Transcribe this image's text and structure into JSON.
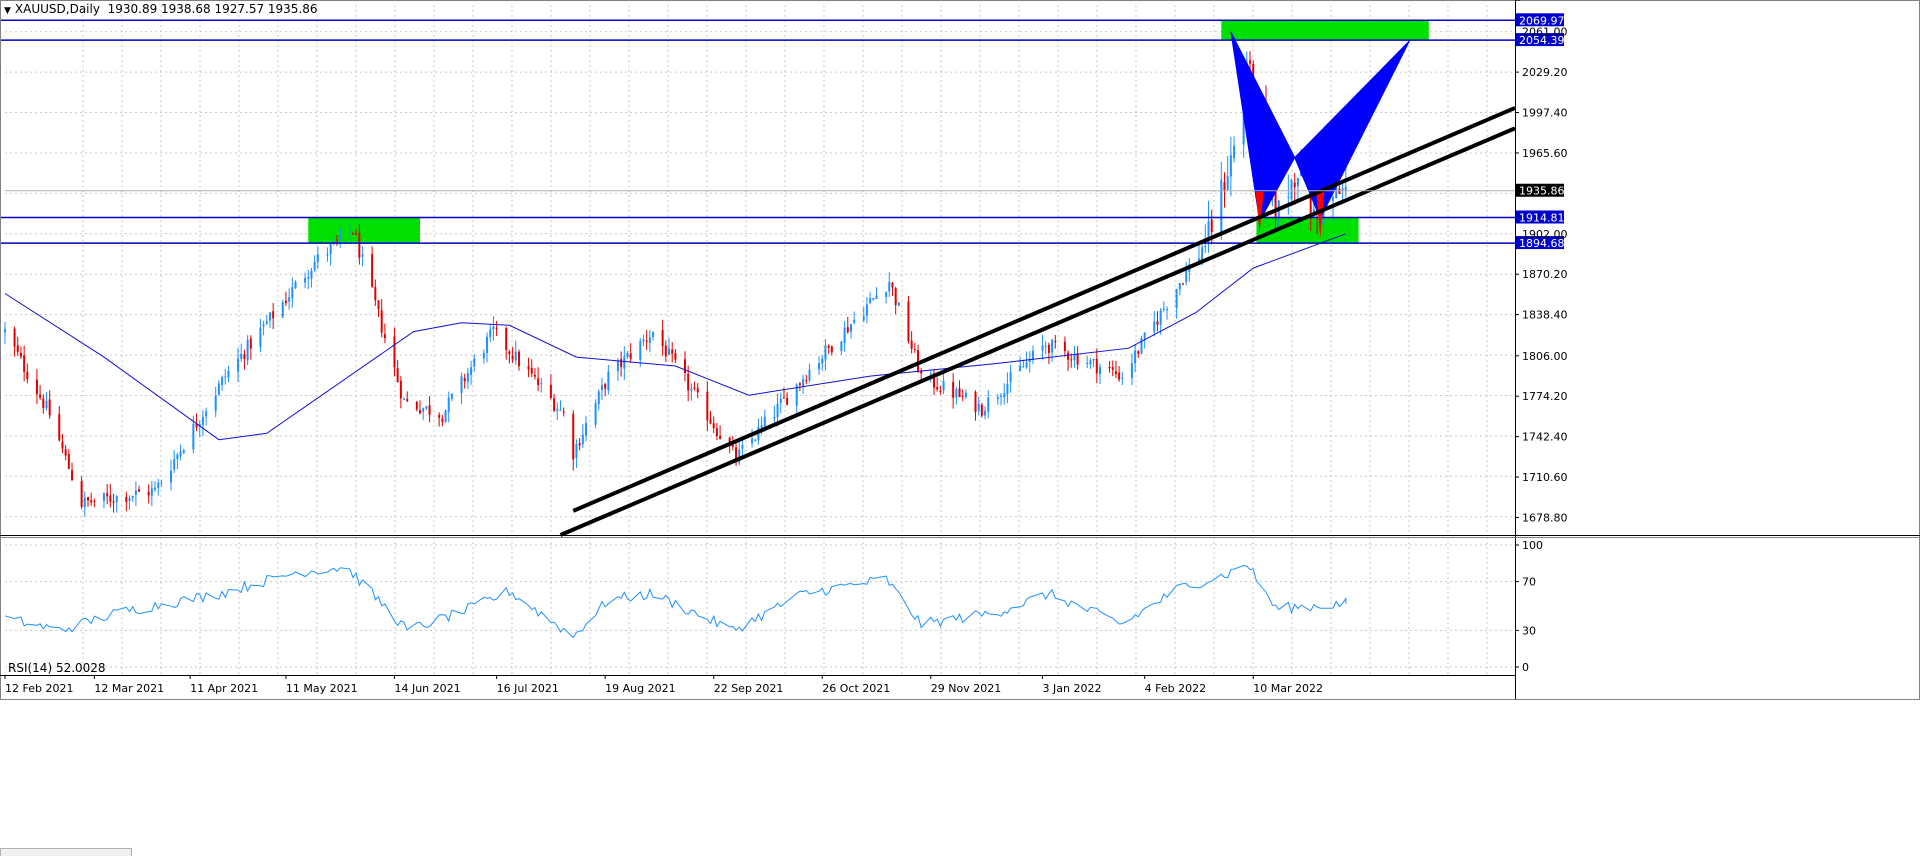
{
  "header": {
    "symbol": "XAUUSD,Daily",
    "ohlc": "1930.89 1938.68 1927.57 1935.86",
    "menu_icon": "triangle-down-icon"
  },
  "rsi_header": {
    "label": "RSI(14) 52.0028"
  },
  "colors": {
    "bull": "#1e90ff",
    "bear": "#e00000",
    "ma": "#1010d0",
    "level": "#0000cc",
    "zone": "#00e000",
    "pattern_bull": "#0000ff",
    "pattern_bear": "#ff0000",
    "trendline": "#000000",
    "rsi": "#1e90ff",
    "grid": "#c8c8c8",
    "current_price_bg": "#000000"
  },
  "chart_data": [
    {
      "type": "candlestick",
      "symbol": "XAUUSD",
      "timeframe": "Daily",
      "ylim": [
        1665,
        2082
      ],
      "x_range_dates": [
        "2021-02-12",
        "2022-05-31"
      ],
      "price_ticks": [
        "2029.20",
        "1997.40",
        "1965.60",
        "1870.20",
        "1838.40",
        "1806.00",
        "1774.20",
        "1742.40",
        "1710.60",
        "1678.80"
      ],
      "date_ticks": [
        "12 Feb 2021",
        "12 Mar 2021",
        "11 Apr 2021",
        "11 May 2021",
        "14 Jun 2021",
        "16 Jul 2021",
        "19 Aug 2021",
        "22 Sep 2021",
        "26 Oct 2021",
        "29 Nov 2021",
        "3 Jan 2022",
        "4 Feb 2022",
        "10 Mar 2022"
      ],
      "price_anchors": [
        {
          "date": "2021-02-12",
          "price": 1825
        },
        {
          "date": "2021-02-26",
          "price": 1760
        },
        {
          "date": "2021-03-08",
          "price": 1690
        },
        {
          "date": "2021-03-31",
          "price": 1700
        },
        {
          "date": "2021-04-22",
          "price": 1790
        },
        {
          "date": "2021-05-20",
          "price": 1880
        },
        {
          "date": "2021-06-01",
          "price": 1905
        },
        {
          "date": "2021-06-17",
          "price": 1770
        },
        {
          "date": "2021-06-29",
          "price": 1760
        },
        {
          "date": "2021-07-15",
          "price": 1825
        },
        {
          "date": "2021-08-06",
          "price": 1760
        },
        {
          "date": "2021-08-09",
          "price": 1730
        },
        {
          "date": "2021-08-20",
          "price": 1790
        },
        {
          "date": "2021-09-03",
          "price": 1825
        },
        {
          "date": "2021-09-29",
          "price": 1725
        },
        {
          "date": "2021-10-22",
          "price": 1795
        },
        {
          "date": "2021-11-16",
          "price": 1865
        },
        {
          "date": "2021-11-26",
          "price": 1790
        },
        {
          "date": "2021-12-15",
          "price": 1765
        },
        {
          "date": "2022-01-04",
          "price": 1815
        },
        {
          "date": "2022-01-28",
          "price": 1790
        },
        {
          "date": "2022-02-14",
          "price": 1860
        },
        {
          "date": "2022-02-24",
          "price": 1900
        },
        {
          "date": "2022-03-04",
          "price": 1970
        },
        {
          "date": "2022-03-08",
          "price": 2040
        },
        {
          "date": "2022-03-15",
          "price": 1930
        },
        {
          "date": "2022-03-18",
          "price": 1920
        },
        {
          "date": "2022-03-24",
          "price": 1955
        },
        {
          "date": "2022-03-29",
          "price": 1915
        },
        {
          "date": "2022-04-04",
          "price": 1930
        },
        {
          "date": "2022-04-08",
          "price": 1935.86
        }
      ],
      "moving_average": [
        {
          "date": "2021-02-12",
          "value": 1855
        },
        {
          "date": "2021-03-15",
          "value": 1805
        },
        {
          "date": "2021-04-20",
          "value": 1740
        },
        {
          "date": "2021-05-05",
          "value": 1745
        },
        {
          "date": "2021-06-20",
          "value": 1825
        },
        {
          "date": "2021-07-05",
          "value": 1832
        },
        {
          "date": "2021-07-20",
          "value": 1830
        },
        {
          "date": "2021-08-10",
          "value": 1805
        },
        {
          "date": "2021-09-10",
          "value": 1798
        },
        {
          "date": "2021-10-03",
          "value": 1775
        },
        {
          "date": "2021-11-10",
          "value": 1790
        },
        {
          "date": "2021-12-20",
          "value": 1800
        },
        {
          "date": "2022-01-30",
          "value": 1812
        },
        {
          "date": "2022-02-20",
          "value": 1840
        },
        {
          "date": "2022-03-10",
          "value": 1875
        },
        {
          "date": "2022-04-08",
          "value": 1902
        }
      ],
      "horizontal_levels": [
        {
          "price": 2069.97,
          "label": "2069.97"
        },
        {
          "price": 2054.39,
          "label": "2054.39"
        },
        {
          "price": 1914.81,
          "label": "1914.81"
        },
        {
          "price": 1894.68,
          "label": "1894.68"
        }
      ],
      "axis_tags": [
        {
          "price": 2061.0,
          "label": "2061.00"
        },
        {
          "price": 1902.0,
          "label": "1902.00"
        }
      ],
      "current_price": {
        "price": 1935.86,
        "label": "1935.86"
      },
      "zones": [
        {
          "date_start": "2021-05-18",
          "date_end": "2021-06-22",
          "price_low": 1894.68,
          "price_high": 1914.81
        },
        {
          "date_start": "2022-02-28",
          "date_end": "2022-05-04",
          "price_low": 2054.39,
          "price_high": 2069.97
        },
        {
          "date_start": "2022-03-11",
          "date_end": "2022-04-12",
          "price_low": 1894.68,
          "price_high": 1914.81
        }
      ],
      "trendlines": [
        {
          "from": {
            "date": "2021-08-09",
            "price": 1684
          },
          "to": {
            "date": "2022-05-31",
            "price": 2001
          }
        },
        {
          "from": {
            "date": "2021-08-05",
            "price": 1665
          },
          "to": {
            "date": "2022-05-31",
            "price": 1985
          }
        }
      ],
      "harmonic_pattern": {
        "points": [
          {
            "date": "2022-03-03",
            "price": 2061
          },
          {
            "date": "2022-03-12",
            "price": 1912
          },
          {
            "date": "2022-03-23",
            "price": 1962
          },
          {
            "date": "2022-03-31",
            "price": 1914
          },
          {
            "date": "2022-04-28",
            "price": 2054
          }
        ]
      }
    },
    {
      "type": "line",
      "title": "RSI(14) 52.0028",
      "ylim": [
        0,
        100
      ],
      "y_ticks": [
        "100",
        "70",
        "30",
        "0"
      ],
      "last_value": 52.0028,
      "anchors": [
        {
          "date": "2021-02-12",
          "value": 40
        },
        {
          "date": "2021-03-01",
          "value": 30
        },
        {
          "date": "2021-03-20",
          "value": 45
        },
        {
          "date": "2021-04-20",
          "value": 60
        },
        {
          "date": "2021-05-15",
          "value": 78
        },
        {
          "date": "2021-05-30",
          "value": 82
        },
        {
          "date": "2021-06-18",
          "value": 30
        },
        {
          "date": "2021-07-05",
          "value": 45
        },
        {
          "date": "2021-07-20",
          "value": 62
        },
        {
          "date": "2021-08-09",
          "value": 25
        },
        {
          "date": "2021-08-20",
          "value": 55
        },
        {
          "date": "2021-09-03",
          "value": 60
        },
        {
          "date": "2021-09-28",
          "value": 30
        },
        {
          "date": "2021-10-20",
          "value": 60
        },
        {
          "date": "2021-11-15",
          "value": 72
        },
        {
          "date": "2021-11-26",
          "value": 35
        },
        {
          "date": "2021-12-20",
          "value": 45
        },
        {
          "date": "2022-01-05",
          "value": 60
        },
        {
          "date": "2022-01-28",
          "value": 35
        },
        {
          "date": "2022-02-15",
          "value": 65
        },
        {
          "date": "2022-03-01",
          "value": 75
        },
        {
          "date": "2022-03-08",
          "value": 85
        },
        {
          "date": "2022-03-17",
          "value": 48
        },
        {
          "date": "2022-03-29",
          "value": 50
        },
        {
          "date": "2022-04-08",
          "value": 52
        }
      ]
    }
  ]
}
